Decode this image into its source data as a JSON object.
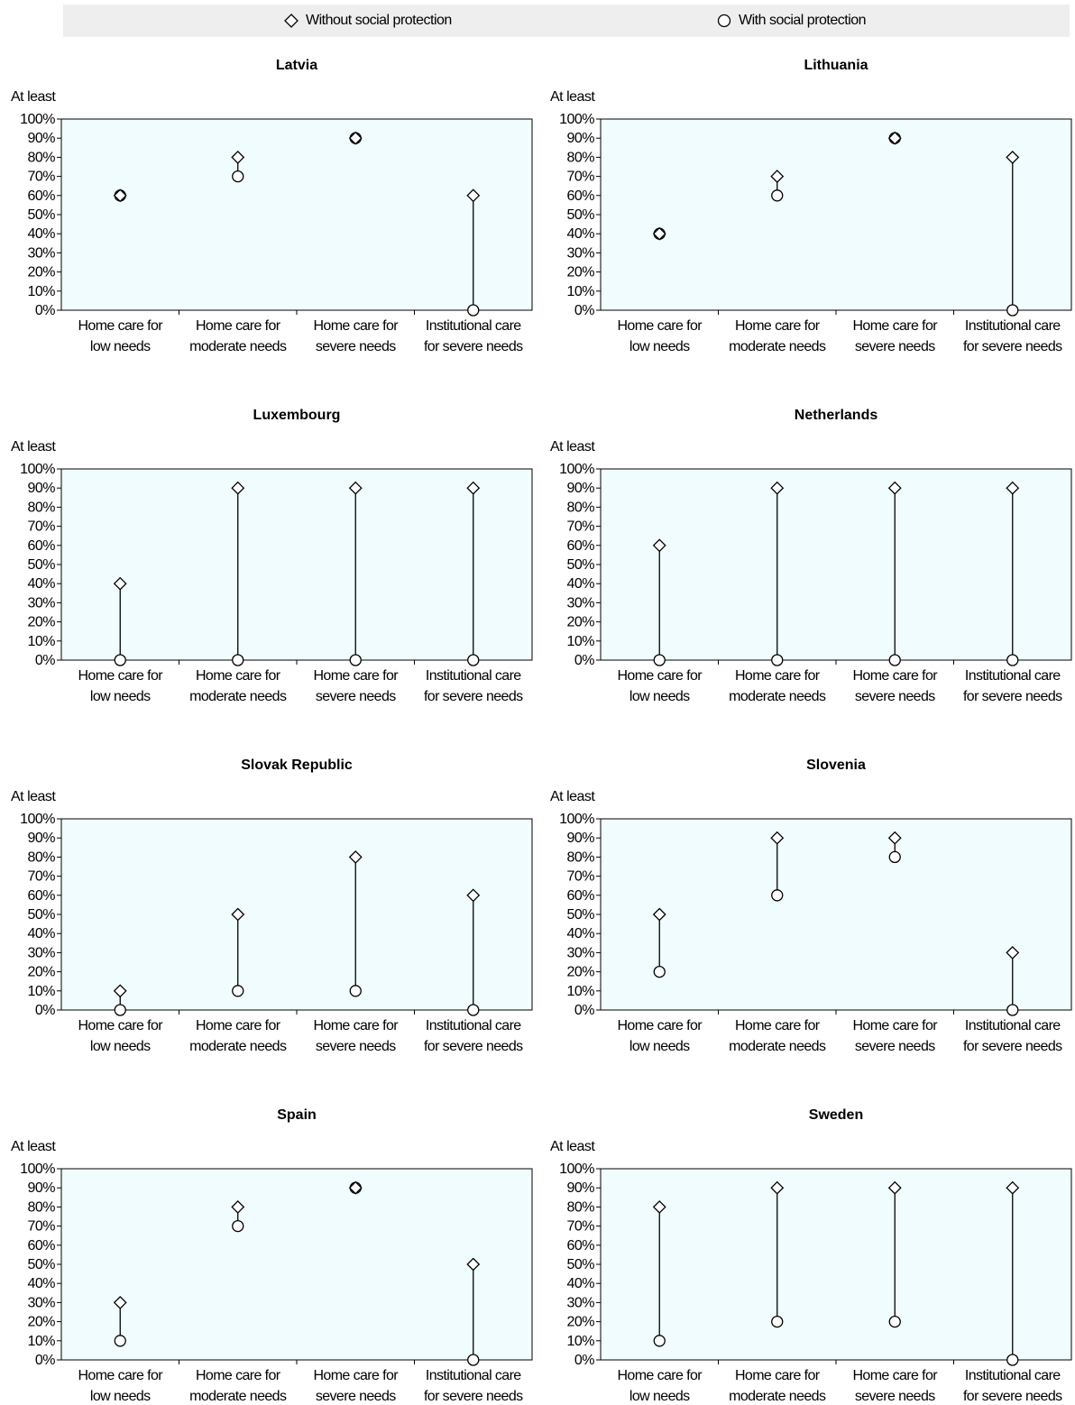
{
  "legend": {
    "without_label": "Without social protection",
    "with_label": "With social protection",
    "without_icon": "diamond-marker-icon",
    "with_icon": "circle-marker-icon"
  },
  "colors": {
    "plot_bg": "#f0fcfd",
    "legend_bg": "#eeeeee",
    "line": "#000000",
    "marker_fill": "#ffffff"
  },
  "chart_data": [
    {
      "type": "dot-range",
      "title": "Latvia",
      "ylabel": "At least",
      "ylim": [
        0,
        100
      ],
      "yticks": [
        "0%",
        "10%",
        "20%",
        "30%",
        "40%",
        "50%",
        "60%",
        "70%",
        "80%",
        "90%",
        "100%"
      ],
      "categories": [
        [
          "Home care for",
          "low needs"
        ],
        [
          "Home care for",
          "moderate needs"
        ],
        [
          "Home care for",
          "severe needs"
        ],
        [
          "Institutional care",
          "for severe needs"
        ]
      ],
      "series": [
        {
          "name": "Without social protection",
          "marker": "diamond",
          "values": [
            60,
            80,
            90,
            60
          ]
        },
        {
          "name": "With social protection",
          "marker": "circle",
          "values": [
            60,
            70,
            90,
            0
          ]
        }
      ]
    },
    {
      "type": "dot-range",
      "title": "Lithuania",
      "ylabel": "At least",
      "ylim": [
        0,
        100
      ],
      "yticks": [
        "0%",
        "10%",
        "20%",
        "30%",
        "40%",
        "50%",
        "60%",
        "70%",
        "80%",
        "90%",
        "100%"
      ],
      "categories": [
        [
          "Home care for",
          "low needs"
        ],
        [
          "Home care for",
          "moderate needs"
        ],
        [
          "Home care for",
          "severe needs"
        ],
        [
          "Institutional care",
          "for severe needs"
        ]
      ],
      "series": [
        {
          "name": "Without social protection",
          "marker": "diamond",
          "values": [
            40,
            70,
            90,
            80
          ]
        },
        {
          "name": "With social protection",
          "marker": "circle",
          "values": [
            40,
            60,
            90,
            0
          ]
        }
      ]
    },
    {
      "type": "dot-range",
      "title": "Luxembourg",
      "ylabel": "At least",
      "ylim": [
        0,
        100
      ],
      "yticks": [
        "0%",
        "10%",
        "20%",
        "30%",
        "40%",
        "50%",
        "60%",
        "70%",
        "80%",
        "90%",
        "100%"
      ],
      "categories": [
        [
          "Home care for",
          "low needs"
        ],
        [
          "Home care for",
          "moderate needs"
        ],
        [
          "Home care for",
          "severe needs"
        ],
        [
          "Institutional care",
          "for severe needs"
        ]
      ],
      "series": [
        {
          "name": "Without social protection",
          "marker": "diamond",
          "values": [
            40,
            90,
            90,
            90
          ]
        },
        {
          "name": "With social protection",
          "marker": "circle",
          "values": [
            0,
            0,
            0,
            0
          ]
        }
      ]
    },
    {
      "type": "dot-range",
      "title": "Netherlands",
      "ylabel": "At least",
      "ylim": [
        0,
        100
      ],
      "yticks": [
        "0%",
        "10%",
        "20%",
        "30%",
        "40%",
        "50%",
        "60%",
        "70%",
        "80%",
        "90%",
        "100%"
      ],
      "categories": [
        [
          "Home care for",
          "low needs"
        ],
        [
          "Home care for",
          "moderate needs"
        ],
        [
          "Home care for",
          "severe needs"
        ],
        [
          "Institutional care",
          "for severe needs"
        ]
      ],
      "series": [
        {
          "name": "Without social protection",
          "marker": "diamond",
          "values": [
            60,
            90,
            90,
            90
          ]
        },
        {
          "name": "With social protection",
          "marker": "circle",
          "values": [
            0,
            0,
            0,
            0
          ]
        }
      ]
    },
    {
      "type": "dot-range",
      "title": "Slovak Republic",
      "ylabel": "At least",
      "ylim": [
        0,
        100
      ],
      "yticks": [
        "0%",
        "10%",
        "20%",
        "30%",
        "40%",
        "50%",
        "60%",
        "70%",
        "80%",
        "90%",
        "100%"
      ],
      "categories": [
        [
          "Home care for",
          "low needs"
        ],
        [
          "Home care for",
          "moderate needs"
        ],
        [
          "Home care for",
          "severe needs"
        ],
        [
          "Institutional care",
          "for severe needs"
        ]
      ],
      "series": [
        {
          "name": "Without social protection",
          "marker": "diamond",
          "values": [
            10,
            50,
            80,
            60
          ]
        },
        {
          "name": "With social protection",
          "marker": "circle",
          "values": [
            0,
            10,
            10,
            0
          ]
        }
      ]
    },
    {
      "type": "dot-range",
      "title": "Slovenia",
      "ylabel": "At least",
      "ylim": [
        0,
        100
      ],
      "yticks": [
        "0%",
        "10%",
        "20%",
        "30%",
        "40%",
        "50%",
        "60%",
        "70%",
        "80%",
        "90%",
        "100%"
      ],
      "categories": [
        [
          "Home care for",
          "low needs"
        ],
        [
          "Home care for",
          "moderate needs"
        ],
        [
          "Home care for",
          "severe needs"
        ],
        [
          "Institutional care",
          "for severe needs"
        ]
      ],
      "series": [
        {
          "name": "Without social protection",
          "marker": "diamond",
          "values": [
            50,
            90,
            90,
            30
          ]
        },
        {
          "name": "With social protection",
          "marker": "circle",
          "values": [
            20,
            60,
            80,
            0
          ]
        }
      ]
    },
    {
      "type": "dot-range",
      "title": "Spain",
      "ylabel": "At least",
      "ylim": [
        0,
        100
      ],
      "yticks": [
        "0%",
        "10%",
        "20%",
        "30%",
        "40%",
        "50%",
        "60%",
        "70%",
        "80%",
        "90%",
        "100%"
      ],
      "categories": [
        [
          "Home care for",
          "low needs"
        ],
        [
          "Home care for",
          "moderate needs"
        ],
        [
          "Home care for",
          "severe needs"
        ],
        [
          "Institutional care",
          "for severe needs"
        ]
      ],
      "series": [
        {
          "name": "Without social protection",
          "marker": "diamond",
          "values": [
            30,
            80,
            90,
            50
          ]
        },
        {
          "name": "With social protection",
          "marker": "circle",
          "values": [
            10,
            70,
            90,
            0
          ]
        }
      ]
    },
    {
      "type": "dot-range",
      "title": "Sweden",
      "ylabel": "At least",
      "ylim": [
        0,
        100
      ],
      "yticks": [
        "0%",
        "10%",
        "20%",
        "30%",
        "40%",
        "50%",
        "60%",
        "70%",
        "80%",
        "90%",
        "100%"
      ],
      "categories": [
        [
          "Home care for",
          "low needs"
        ],
        [
          "Home care for",
          "moderate needs"
        ],
        [
          "Home care for",
          "severe needs"
        ],
        [
          "Institutional care",
          "for severe needs"
        ]
      ],
      "series": [
        {
          "name": "Without social protection",
          "marker": "diamond",
          "values": [
            80,
            90,
            90,
            90
          ]
        },
        {
          "name": "With social protection",
          "marker": "circle",
          "values": [
            10,
            20,
            20,
            0
          ]
        }
      ]
    }
  ]
}
